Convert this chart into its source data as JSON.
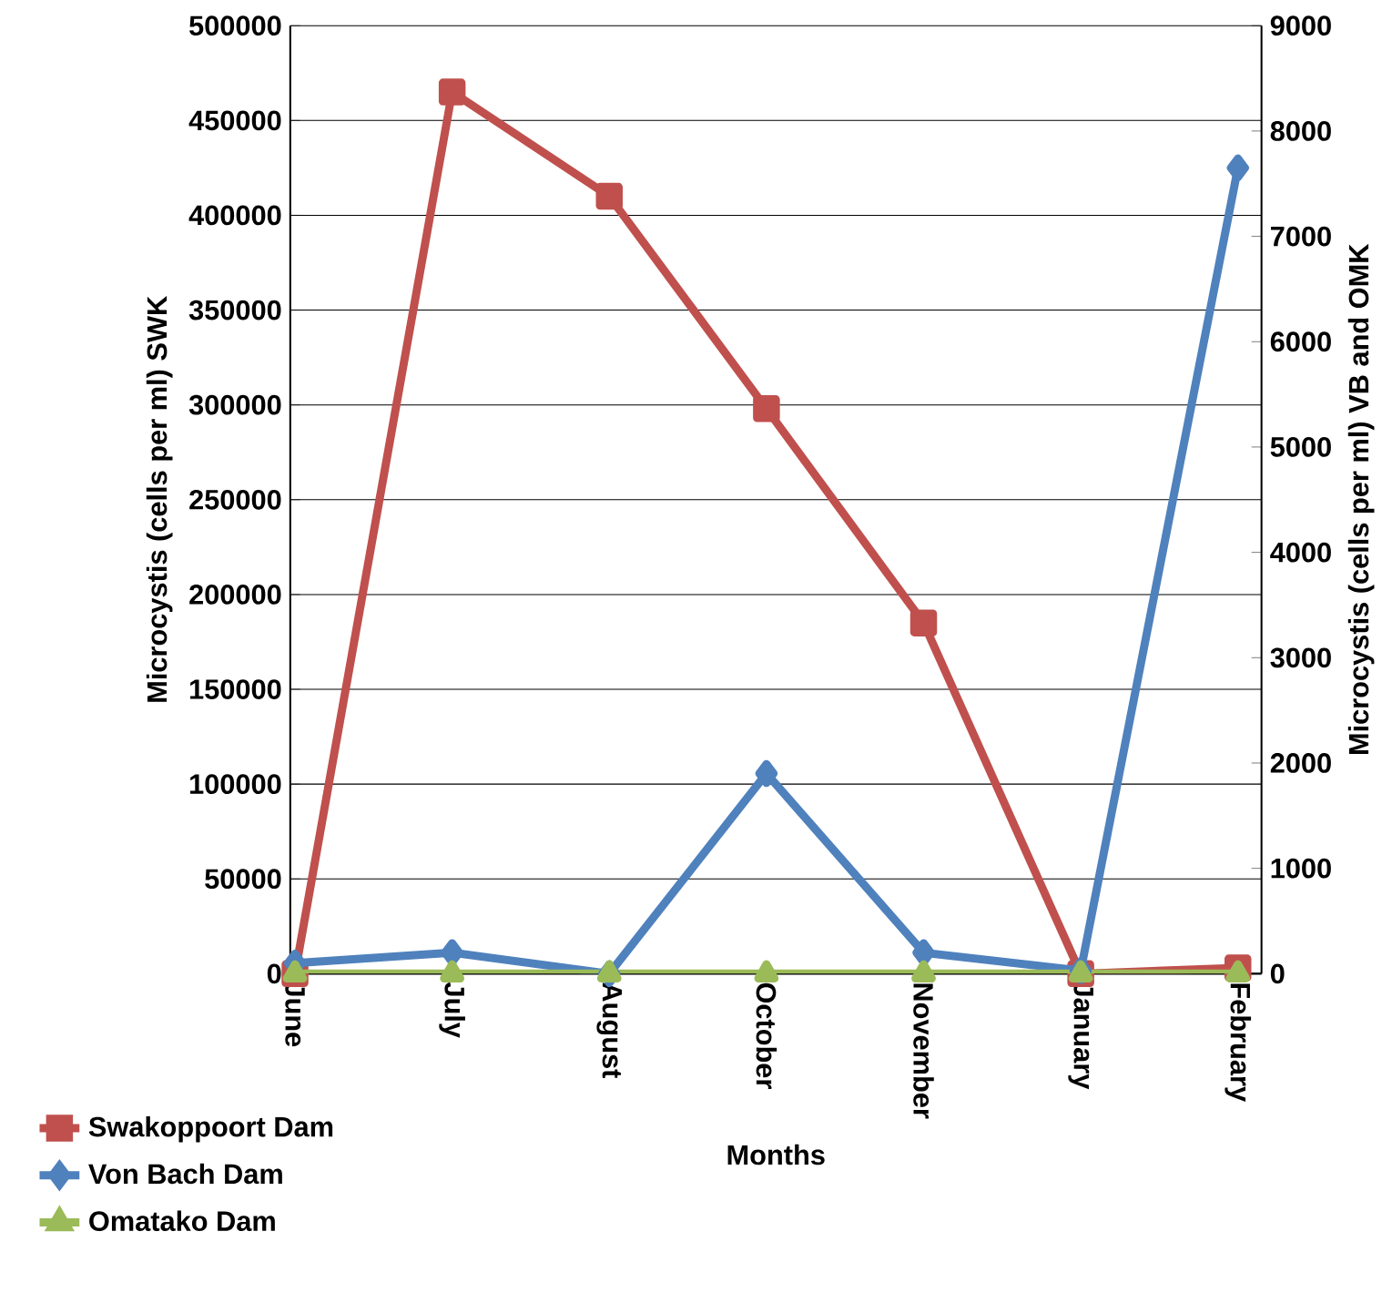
{
  "chart_data": {
    "type": "line",
    "categories": [
      "June",
      "July",
      "August",
      "October",
      "November",
      "January",
      "February"
    ],
    "series": [
      {
        "name": "Swakoppoort Dam",
        "color": "#c0504d",
        "marker": "square",
        "axis": "y",
        "values": [
          0,
          465000,
          410000,
          298000,
          185000,
          0,
          3000
        ]
      },
      {
        "name": "Von Bach  Dam",
        "color": "#4f81bd",
        "marker": "diamond",
        "axis": "y2",
        "values": [
          100,
          200,
          0,
          1900,
          200,
          30,
          7650
        ]
      },
      {
        "name": "Omatako Dam",
        "color": "#9bbb59",
        "marker": "triangle",
        "axis": "y2",
        "values": [
          0,
          0,
          0,
          0,
          0,
          0,
          0
        ]
      }
    ],
    "xlabel": "Months",
    "ylabel": "Microcystis (cells per ml) SWK",
    "y2label": "Microcystis (cells per ml) VB and OMK",
    "ylim": [
      0,
      500000
    ],
    "yticks": [
      0,
      50000,
      100000,
      150000,
      200000,
      250000,
      300000,
      350000,
      400000,
      450000,
      500000
    ],
    "y2lim": [
      0,
      9000
    ],
    "y2ticks": [
      0,
      1000,
      2000,
      3000,
      4000,
      5000,
      6000,
      7000,
      8000,
      9000
    ],
    "grid": "y",
    "legend": "bottom left"
  }
}
